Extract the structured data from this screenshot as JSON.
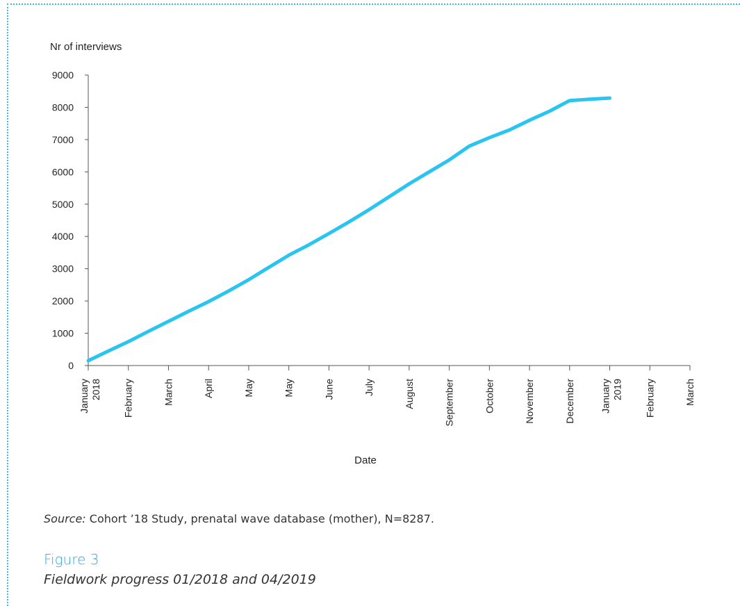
{
  "chart_data": {
    "type": "line",
    "ylabel": "Nr of interviews",
    "xlabel": "Date",
    "ylim": [
      0,
      9000
    ],
    "yticks": [
      0,
      1000,
      2000,
      3000,
      4000,
      5000,
      6000,
      7000,
      8000,
      9000
    ],
    "categories": [
      [
        "January",
        "2018"
      ],
      [
        "February"
      ],
      [
        "March"
      ],
      [
        "April"
      ],
      [
        "May"
      ],
      [
        "May"
      ],
      [
        "June"
      ],
      [
        "July"
      ],
      [
        "August"
      ],
      [
        "September"
      ],
      [
        "October"
      ],
      [
        "November"
      ],
      [
        "December"
      ],
      [
        "January",
        "2019"
      ],
      [
        "February"
      ],
      [
        "March"
      ]
    ],
    "series": [
      {
        "color": "#29c4f0",
        "points": [
          [
            0,
            150
          ],
          [
            0.5,
            450
          ],
          [
            1,
            740
          ],
          [
            1.5,
            1060
          ],
          [
            2,
            1370
          ],
          [
            2.5,
            1680
          ],
          [
            3,
            1980
          ],
          [
            3.5,
            2310
          ],
          [
            4,
            2660
          ],
          [
            4.5,
            3040
          ],
          [
            5,
            3420
          ],
          [
            5.5,
            3740
          ],
          [
            6,
            4090
          ],
          [
            6.5,
            4450
          ],
          [
            7,
            4830
          ],
          [
            7.5,
            5230
          ],
          [
            8,
            5630
          ],
          [
            8.5,
            6000
          ],
          [
            9,
            6370
          ],
          [
            9.5,
            6800
          ],
          [
            10,
            7060
          ],
          [
            10.5,
            7300
          ],
          [
            11,
            7600
          ],
          [
            11.5,
            7880
          ],
          [
            12,
            8210
          ],
          [
            12.5,
            8250
          ],
          [
            13,
            8287
          ]
        ]
      }
    ],
    "grid": false,
    "legend": "none"
  },
  "source": {
    "label": "Source:",
    "text": " Cohort ’18 Study, prenatal wave database (mother), N=8287."
  },
  "figure": {
    "label": "Figure 3",
    "caption": "Fieldwork progress 01/2018 and 04/2019"
  }
}
